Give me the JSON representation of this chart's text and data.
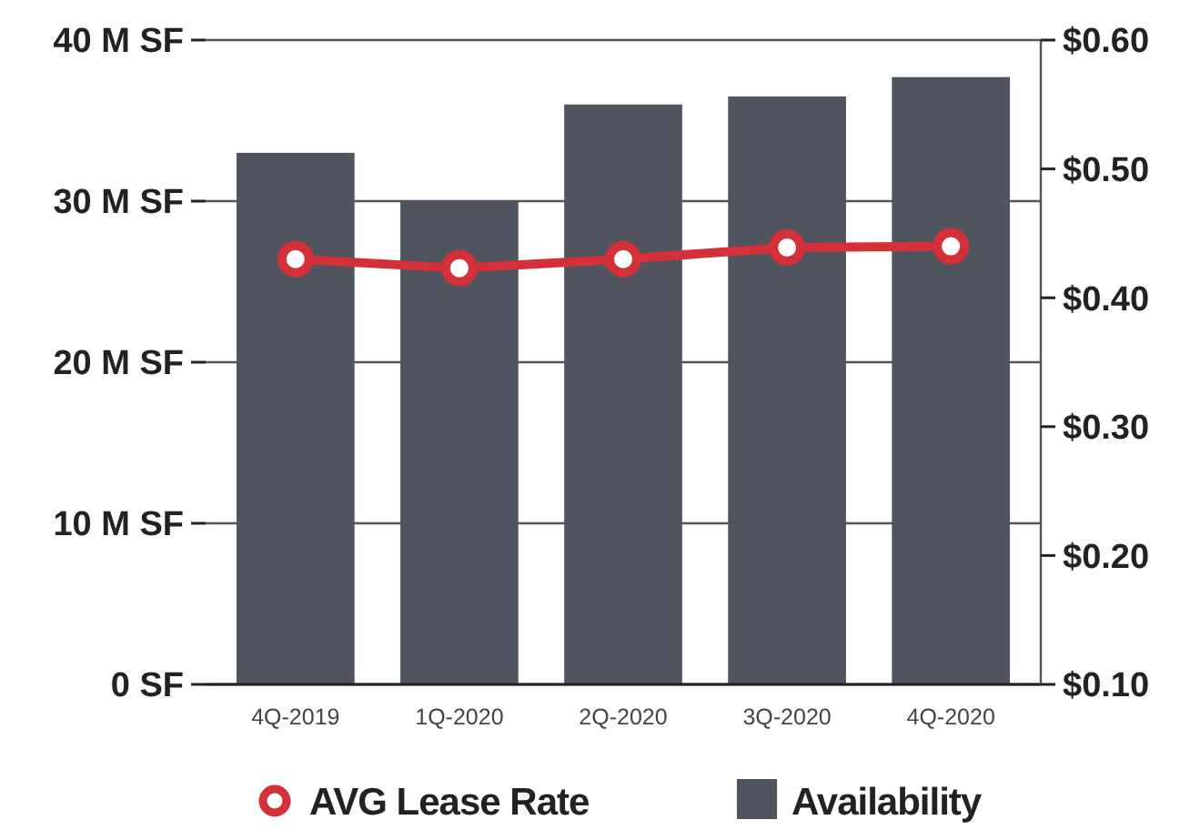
{
  "chart_data": {
    "type": "bar",
    "categories": [
      "4Q-2019",
      "1Q-2020",
      "2Q-2020",
      "3Q-2020",
      "4Q-2020"
    ],
    "series": [
      {
        "name": "AVG Lease Rate",
        "type": "line",
        "axis": "y2",
        "color": "#d3303a",
        "values": [
          0.43,
          0.423,
          0.43,
          0.439,
          0.44
        ]
      },
      {
        "name": "Availability",
        "color": "#50545f",
        "values": [
          33,
          30,
          36,
          36.5,
          37.7
        ]
      }
    ],
    "ylim": [
      0,
      40
    ],
    "yticks": [
      {
        "value": 0,
        "label": "0 SF"
      },
      {
        "value": 10,
        "label": "10 M SF"
      },
      {
        "value": 20,
        "label": "20 M SF"
      },
      {
        "value": 30,
        "label": "30 M SF"
      },
      {
        "value": 40,
        "label": "40 M SF"
      }
    ],
    "y2lim": [
      0.1,
      0.6
    ],
    "y2ticks": [
      {
        "value": 0.1,
        "label": "$0.10"
      },
      {
        "value": 0.2,
        "label": "$0.20"
      },
      {
        "value": 0.3,
        "label": "$0.30"
      },
      {
        "value": 0.4,
        "label": "$0.40"
      },
      {
        "value": 0.5,
        "label": "$0.50"
      },
      {
        "value": 0.6,
        "label": "$0.60"
      }
    ],
    "grid": "y",
    "legend": "bottom",
    "marker": "circle"
  }
}
